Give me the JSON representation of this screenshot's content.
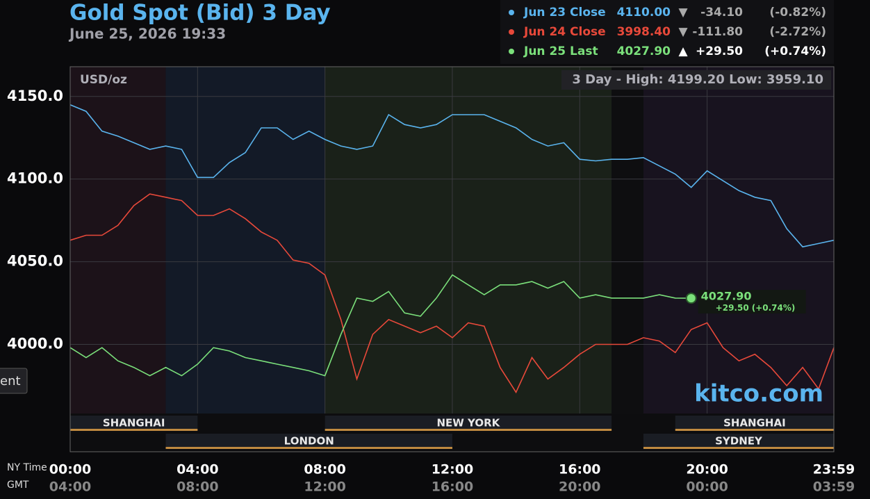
{
  "chart_data": {
    "type": "line",
    "title": "Gold Spot (Bid) 3 Day",
    "subtitle": "June 25, 2026 19:33",
    "y_unit": "USD/oz",
    "stats": "3 Day - High: 4199.20  Low: 3959.10",
    "watermark": "kitco.com",
    "x_axis_label": "NY Time",
    "x2_axis_label": "GMT",
    "side_button": "ent",
    "x": [
      0,
      0.5,
      1,
      1.5,
      2,
      2.5,
      3,
      3.5,
      4,
      4.5,
      5,
      5.5,
      6,
      6.5,
      7,
      7.5,
      8,
      8.5,
      9,
      9.5,
      10,
      10.5,
      11,
      11.5,
      12,
      12.5,
      13,
      13.5,
      14,
      14.5,
      15,
      15.5,
      16,
      16.5,
      17,
      17.5,
      18,
      18.5,
      19,
      19.5,
      20,
      20.5,
      21,
      21.5,
      22,
      22.5,
      23,
      23.5,
      23.98
    ],
    "xlim": [
      0,
      23.98
    ],
    "xticks": [
      {
        "value": 0,
        "label": "00:00"
      },
      {
        "value": 4,
        "label": "04:00"
      },
      {
        "value": 8,
        "label": "08:00"
      },
      {
        "value": 12,
        "label": "12:00"
      },
      {
        "value": 16,
        "label": "16:00"
      },
      {
        "value": 20,
        "label": "20:00"
      },
      {
        "value": 23.98,
        "label": "23:59"
      }
    ],
    "x2_tick_labels": [
      "04:00",
      "08:00",
      "12:00",
      "16:00",
      "20:00",
      "00:00",
      "03:59"
    ],
    "ylim": [
      3935,
      4168
    ],
    "yticks": [
      {
        "value": 4000,
        "label": "4000.0"
      },
      {
        "value": 4050,
        "label": "4050.0"
      },
      {
        "value": 4100,
        "label": "4100.0"
      },
      {
        "value": 4150,
        "label": "4150.0"
      }
    ],
    "grid": true,
    "regions": [
      {
        "start": 0,
        "end": 3,
        "color": "#1c1219"
      },
      {
        "start": 3,
        "end": 8,
        "color": "#131a27"
      },
      {
        "start": 8,
        "end": 17,
        "color": "#1a2119"
      },
      {
        "start": 17,
        "end": 18,
        "color": "#0e0e10"
      },
      {
        "start": 18,
        "end": 23.98,
        "color": "#18131f"
      }
    ],
    "sessions_top": [
      {
        "name": "SHANGHAI",
        "start": 0,
        "end": 4
      },
      {
        "name": "NEW YORK",
        "start": 8,
        "end": 17
      },
      {
        "name": "SHANGHAI",
        "start": 19,
        "end": 23.98
      }
    ],
    "sessions_bottom": [
      {
        "name": "LONDON",
        "start": 3,
        "end": 12
      },
      {
        "name": "SYDNEY",
        "start": 18,
        "end": 23.98
      }
    ],
    "series": [
      {
        "name": "Jun 23 Close",
        "color": "#5ab4ee",
        "last_label": "4110.00",
        "arrow": "▼",
        "change": "-34.10",
        "change_pct": "(-0.82%)",
        "values": [
          4145,
          4141,
          4129,
          4126,
          4122,
          4118,
          4120,
          4118,
          4101,
          4101,
          4110,
          4116,
          4131,
          4131,
          4124,
          4129,
          4124,
          4120,
          4118,
          4120,
          4139,
          4133,
          4131,
          4133,
          4139,
          4139,
          4139,
          4135,
          4131,
          4124,
          4120,
          4122,
          4112,
          4111,
          4112,
          4112,
          4113,
          4108,
          4103,
          4095,
          4105,
          4099,
          4093,
          4089,
          4087,
          4070,
          4059,
          4061,
          4063
        ]
      },
      {
        "name": "Jun 24 Close",
        "color": "#e8493a",
        "last_label": "3998.40",
        "arrow": "▼",
        "change": "-111.80",
        "change_pct": "(-2.72%)",
        "values": [
          4063,
          4066,
          4066,
          4072,
          4084,
          4091,
          4089,
          4087,
          4078,
          4078,
          4082,
          4076,
          4068,
          4063,
          4051,
          4049,
          4042,
          4015,
          3979,
          4006,
          4015,
          4011,
          4007,
          4011,
          4004,
          4013,
          4011,
          3986,
          3971,
          3992,
          3979,
          3986,
          3994,
          4000,
          4000,
          4000,
          4004,
          4002,
          3995,
          4009,
          4013,
          3998,
          3990,
          3994,
          3986,
          3975,
          3986,
          3973,
          3998
        ]
      },
      {
        "name": "Jun 25 Last",
        "color": "#7be07b",
        "last_label": "4027.90",
        "arrow": "▲",
        "change": "+29.50",
        "change_pct": "(+0.74%)",
        "values": [
          3998,
          3992,
          3998,
          3990,
          3986,
          3981,
          3986,
          3981,
          3988,
          3998,
          3996,
          3992,
          3990,
          3988,
          3986,
          3984,
          3981,
          4006,
          4028,
          4026,
          4032,
          4019,
          4017,
          4028,
          4042,
          4036,
          4030,
          4036,
          4036,
          4038,
          4034,
          4038,
          4028,
          4030,
          4028,
          4028,
          4028,
          4030,
          4028,
          4027.9,
          null,
          null,
          null,
          null,
          null,
          null,
          null,
          null,
          null
        ]
      }
    ]
  }
}
